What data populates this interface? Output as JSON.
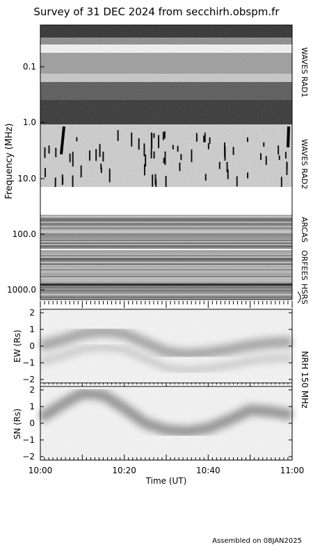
{
  "title": "Survey of 31 DEC 2024 from secchirh.obspm.fr",
  "footer": "Assembled on 08JAN2025",
  "chart_data": [
    {
      "type": "heatmap",
      "name": "dynamic-spectrum",
      "ylabel": "Frequency (MHz)",
      "y_scale": "log",
      "y_ticks": [
        "0.1",
        "1.0",
        "10.0",
        "100.0",
        "1000.0"
      ],
      "instruments": [
        "WAVES RAD1",
        "WAVES RAD2",
        "ARCAS",
        "ORFEES",
        "HSRS"
      ],
      "colormap": "grayscale"
    },
    {
      "type": "heatmap",
      "name": "nrh-ew",
      "ylabel": "EW (Rs)",
      "ylim": [
        -2,
        2
      ],
      "y_ticks": [
        "2",
        "1",
        "0",
        "−1",
        "−2"
      ],
      "instrument": "NRH 150 MHz",
      "track": [
        0,
        0.35,
        0.75,
        0.9,
        0.75,
        0.2,
        -0.35,
        -0.5,
        -0.4,
        -0.2,
        0.05,
        0.2,
        0.25
      ]
    },
    {
      "type": "heatmap",
      "name": "nrh-sn",
      "ylabel": "SN (Rs)",
      "ylim": [
        -2,
        2
      ],
      "y_ticks": [
        "2",
        "1",
        "0",
        "−1",
        "−2"
      ],
      "instrument": "NRH 150 MHz",
      "track": [
        0.3,
        1.1,
        1.8,
        1.7,
        0.9,
        0.0,
        -0.4,
        -0.5,
        -0.3,
        0.2,
        0.8,
        0.7,
        0.5
      ]
    }
  ],
  "x_axis": {
    "xlabel": "Time (UT)",
    "x_ticks": [
      "10:00",
      "10:20",
      "10:40",
      "11:00"
    ]
  }
}
